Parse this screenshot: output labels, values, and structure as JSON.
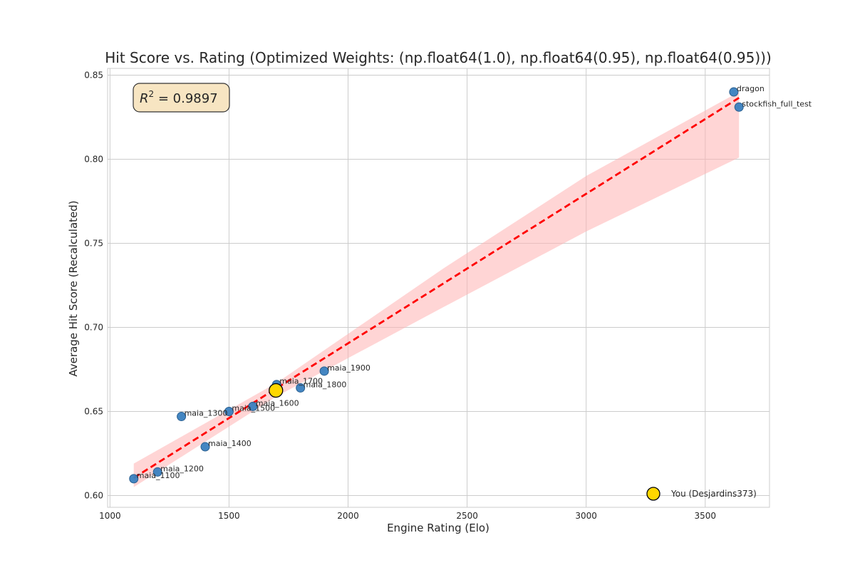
{
  "chart_data": {
    "type": "scatter",
    "title": "Hit Score vs. Rating (Optimized Weights: (np.float64(1.0), np.float64(0.95), np.float64(0.95)))",
    "xlabel": "Engine Rating (Elo)",
    "ylabel": "Average Hit Score (Recalculated)",
    "xlim": [
      990,
      3770
    ],
    "ylim": [
      0.593,
      0.854
    ],
    "x_ticks": [
      1000,
      1500,
      2000,
      2500,
      3000,
      3500
    ],
    "y_ticks": [
      0.6,
      0.65,
      0.7,
      0.75,
      0.8,
      0.85
    ],
    "y_tick_labels": [
      "0.60",
      "0.65",
      "0.70",
      "0.75",
      "0.80",
      "0.85"
    ],
    "grid": true,
    "annotation": {
      "prefix": "R",
      "exponent": "2",
      "text": " = 0.9897"
    },
    "series": [
      {
        "marker_color": "#3a7fbf",
        "points": [
          {
            "label": "maia_1100",
            "x": 1100,
            "y": 0.61
          },
          {
            "label": "maia_1200",
            "x": 1200,
            "y": 0.614
          },
          {
            "label": "maia_1300",
            "x": 1300,
            "y": 0.647
          },
          {
            "label": "maia_1400",
            "x": 1400,
            "y": 0.629
          },
          {
            "label": "maia_1500",
            "x": 1500,
            "y": 0.65
          },
          {
            "label": "maia_1600",
            "x": 1600,
            "y": 0.653
          },
          {
            "label": "maia_1700",
            "x": 1700,
            "y": 0.666
          },
          {
            "label": "maia_1800",
            "x": 1800,
            "y": 0.664
          },
          {
            "label": "maia_1900",
            "x": 1900,
            "y": 0.674
          },
          {
            "label": "dragon",
            "x": 3620,
            "y": 0.84
          },
          {
            "label": "stockfish_full_test",
            "x": 3642,
            "y": 0.831
          }
        ]
      },
      {
        "name": "You (Desjardins373)",
        "marker_color": "#ffd700",
        "points": [
          {
            "x": 1697,
            "y": 0.6625
          }
        ]
      }
    ],
    "regression": {
      "x": [
        1100,
        3642
      ],
      "y": [
        0.6105,
        0.8365
      ],
      "color": "#ff0000",
      "band_color": "#ffb3b3",
      "band": {
        "x": [
          1100,
          1700,
          2400,
          3000,
          3642
        ],
        "lower": [
          0.605,
          0.659,
          0.712,
          0.757,
          0.801
        ],
        "upper": [
          0.619,
          0.667,
          0.735,
          0.79,
          0.84
        ]
      }
    },
    "legend_position": "bottom-right"
  }
}
